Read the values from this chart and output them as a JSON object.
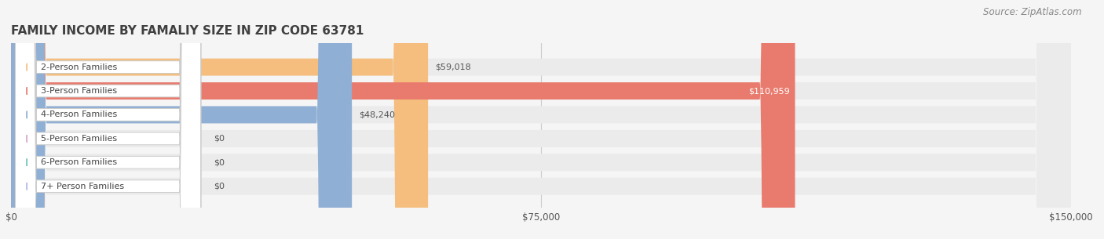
{
  "title": "FAMILY INCOME BY FAMALIY SIZE IN ZIP CODE 63781",
  "source": "Source: ZipAtlas.com",
  "categories": [
    "2-Person Families",
    "3-Person Families",
    "4-Person Families",
    "5-Person Families",
    "6-Person Families",
    "7+ Person Families"
  ],
  "values": [
    59018,
    110959,
    48240,
    0,
    0,
    0
  ],
  "bar_colors": [
    "#f5be7e",
    "#e87b6e",
    "#8fafd4",
    "#d4a8cc",
    "#6ec4b8",
    "#b0b8e8"
  ],
  "x_max": 150000,
  "x_ticks": [
    0,
    75000,
    150000
  ],
  "x_tick_labels": [
    "$0",
    "$75,000",
    "$150,000"
  ],
  "bg_color": "#f5f5f5",
  "bar_bg_color": "#ebebeb",
  "title_color": "#404040",
  "title_fontsize": 11,
  "source_fontsize": 8.5,
  "label_fontsize": 8,
  "tick_fontsize": 8.5
}
